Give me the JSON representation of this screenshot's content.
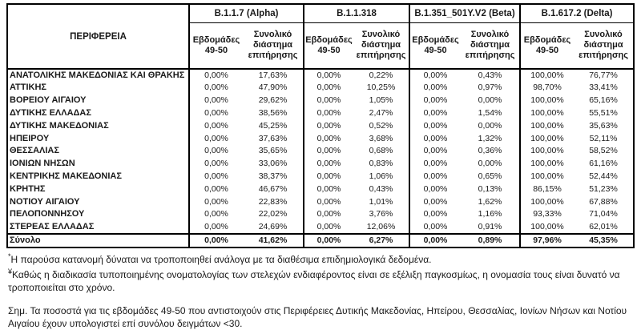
{
  "table": {
    "region_header": "ΠΕΡΙΦΕΡΕΙΑ",
    "variants": [
      {
        "name": "B.1.1.7 (Alpha)"
      },
      {
        "name": "B.1.1.318"
      },
      {
        "name": "B.1.351_501Y.V2 (Beta)"
      },
      {
        "name": "B.1.617.2 (Delta)"
      }
    ],
    "subheaders": [
      "Εβδομάδες 49-50",
      "Συνολικό διάστημα επιτήρησης"
    ],
    "rows": [
      {
        "region": "ΑΝΑΤΟΛΙΚΗΣ ΜΑΚΕΔΟΝΙΑΣ ΚΑΙ ΘΡΑΚΗΣ",
        "values": [
          "0,00%",
          "17,63%",
          "0,00%",
          "0,22%",
          "0,00%",
          "0,43%",
          "100,00%",
          "76,77%"
        ]
      },
      {
        "region": "ΑΤΤΙΚΗΣ",
        "values": [
          "0,00%",
          "47,90%",
          "0,00%",
          "10,25%",
          "0,00%",
          "0,97%",
          "98,70%",
          "33,41%"
        ]
      },
      {
        "region": "ΒΟΡΕΙΟΥ ΑΙΓΑΙΟΥ",
        "values": [
          "0,00%",
          "29,62%",
          "0,00%",
          "1,05%",
          "0,00%",
          "0,00%",
          "100,00%",
          "65,16%"
        ]
      },
      {
        "region": "ΔΥΤΙΚΗΣ ΕΛΛΑΔΑΣ",
        "values": [
          "0,00%",
          "38,56%",
          "0,00%",
          "2,47%",
          "0,00%",
          "1,54%",
          "100,00%",
          "55,51%"
        ]
      },
      {
        "region": "ΔΥΤΙΚΗΣ ΜΑΚΕΔΟΝΙΑΣ",
        "values": [
          "0,00%",
          "45,25%",
          "0,00%",
          "0,52%",
          "0,00%",
          "0,00%",
          "100,00%",
          "35,63%"
        ]
      },
      {
        "region": "ΗΠΕΙΡΟΥ",
        "values": [
          "0,00%",
          "37,63%",
          "0,00%",
          "3,68%",
          "0,00%",
          "1,32%",
          "100,00%",
          "52,11%"
        ]
      },
      {
        "region": "ΘΕΣΣΑΛΙΑΣ",
        "values": [
          "0,00%",
          "35,65%",
          "0,00%",
          "0,68%",
          "0,00%",
          "0,36%",
          "100,00%",
          "58,52%"
        ]
      },
      {
        "region": "ΙΟΝΙΩΝ ΝΗΣΩΝ",
        "values": [
          "0,00%",
          "33,06%",
          "0,00%",
          "0,83%",
          "0,00%",
          "0,00%",
          "100,00%",
          "61,16%"
        ]
      },
      {
        "region": "ΚΕΝΤΡΙΚΗΣ ΜΑΚΕΔΟΝΙΑΣ",
        "values": [
          "0,00%",
          "38,37%",
          "0,00%",
          "1,06%",
          "0,00%",
          "0,65%",
          "100,00%",
          "52,44%"
        ]
      },
      {
        "region": "ΚΡΗΤΗΣ",
        "values": [
          "0,00%",
          "46,67%",
          "0,00%",
          "0,43%",
          "0,00%",
          "0,13%",
          "86,15%",
          "51,23%"
        ]
      },
      {
        "region": "ΝΟΤΙΟΥ ΑΙΓΑΙΟΥ",
        "values": [
          "0,00%",
          "22,83%",
          "0,00%",
          "1,01%",
          "0,00%",
          "1,62%",
          "100,00%",
          "67,88%"
        ]
      },
      {
        "region": "ΠΕΛΟΠΟΝΝΗΣΟΥ",
        "values": [
          "0,00%",
          "22,02%",
          "0,00%",
          "3,76%",
          "0,00%",
          "1,16%",
          "93,33%",
          "71,04%"
        ]
      },
      {
        "region": "ΣΤΕΡΕΑΣ ΕΛΛΑΔΑΣ",
        "values": [
          "0,00%",
          "24,69%",
          "0,00%",
          "12,06%",
          "0,00%",
          "0,91%",
          "100,00%",
          "62,01%"
        ]
      }
    ],
    "total_row": {
      "region": "Σύνολο",
      "values": [
        "0,00%",
        "41,62%",
        "0,00%",
        "6,27%",
        "0,00%",
        "0,89%",
        "97,96%",
        "45,35%"
      ]
    }
  },
  "footnotes": [
    {
      "marker": "*",
      "text": "Η παρούσα κατανομή δύναται να τροποποιηθεί ανάλογα με τα διαθέσιμα επιδημιολογικά δεδομένα."
    },
    {
      "marker": "¥",
      "text": "Καθώς η διαδικασία τυποποιημένης ονοματολογίας των στελεχών ενδιαφέροντος είναι σε εξέλιξη παγκοσμίως, η ονομασία τους είναι δυνατό να τροποποιείται στο χρόνο."
    }
  ],
  "note": "Σημ. Τα ποσοστά για τις εβδομάδες 49-50 που αντιστοιχούν στις Περιφέρειες Δυτικής Μακεδονίας, Ηπείρου, Θεσσαλίας, Ιονίων Νήσων και Νοτίου Αιγαίου έχουν υπολογιστεί επί συνόλου δειγμάτων <30."
}
